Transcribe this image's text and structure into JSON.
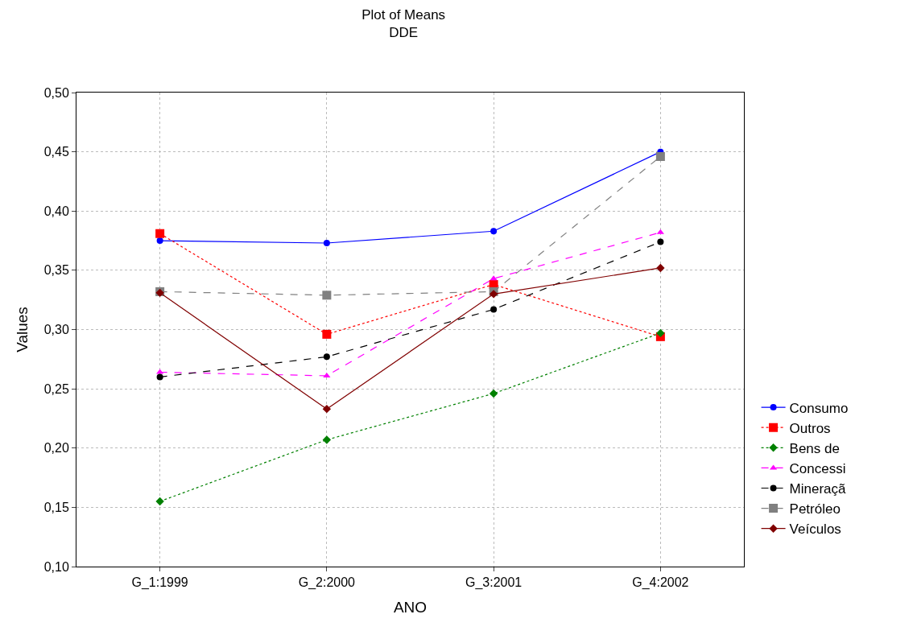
{
  "chart_data": {
    "type": "line",
    "title": "Plot of Means",
    "subtitle": "DDE",
    "xlabel": "ANO",
    "ylabel": "Values",
    "categories": [
      "G_1:1999",
      "G_2:2000",
      "G_3:2001",
      "G_4:2002"
    ],
    "ylim": [
      0.1,
      0.5
    ],
    "yticks": [
      {
        "value": 0.1,
        "label": "0,10"
      },
      {
        "value": 0.15,
        "label": "0,15"
      },
      {
        "value": 0.2,
        "label": "0,20"
      },
      {
        "value": 0.25,
        "label": "0,25"
      },
      {
        "value": 0.3,
        "label": "0,30"
      },
      {
        "value": 0.35,
        "label": "0,35"
      },
      {
        "value": 0.4,
        "label": "0,40"
      },
      {
        "value": 0.45,
        "label": "0,45"
      },
      {
        "value": 0.5,
        "label": "0,50"
      }
    ],
    "grid": true,
    "legend": "right",
    "series": [
      {
        "name": "Consumo",
        "color": "#0000ff",
        "marker": "circle",
        "line_style": "solid",
        "values": [
          0.375,
          0.373,
          0.383,
          0.45
        ]
      },
      {
        "name": "Outros",
        "color": "#ff0000",
        "marker": "square",
        "line_style": "dotted",
        "values": [
          0.381,
          0.296,
          0.338,
          0.294
        ]
      },
      {
        "name": "Bens de",
        "color": "#008000",
        "marker": "diamond",
        "line_style": "dotted",
        "values": [
          0.155,
          0.207,
          0.246,
          0.297
        ]
      },
      {
        "name": "Concessi",
        "color": "#ff00ff",
        "marker": "triangle",
        "line_style": "dashed",
        "values": [
          0.264,
          0.261,
          0.343,
          0.382
        ]
      },
      {
        "name": "Mineraçã",
        "color": "#000000",
        "marker": "circle",
        "line_style": "dashed",
        "values": [
          0.26,
          0.277,
          0.317,
          0.374
        ]
      },
      {
        "name": "Petróleo",
        "color": "#808080",
        "marker": "square",
        "line_style": "dashed",
        "values": [
          0.332,
          0.329,
          0.332,
          0.446
        ]
      },
      {
        "name": "Veículos",
        "color": "#800000",
        "marker": "diamond",
        "line_style": "solid",
        "values": [
          0.331,
          0.233,
          0.33,
          0.352
        ]
      }
    ]
  }
}
